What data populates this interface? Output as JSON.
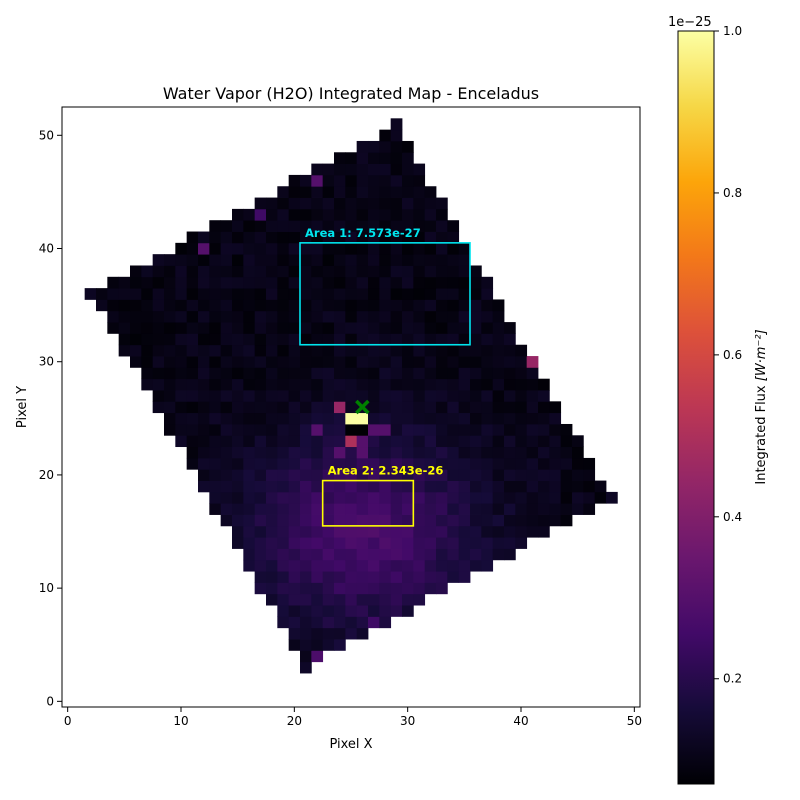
{
  "chart_data": {
    "type": "heatmap",
    "title": "Water Vapor (H2O) Integrated Map - Enceladus",
    "xlabel": "Pixel X",
    "ylabel": "Pixel Y",
    "xlim": [
      -0.5,
      50.5
    ],
    "ylim": [
      -0.5,
      52.5
    ],
    "xticks": [
      0,
      10,
      20,
      30,
      40,
      50
    ],
    "yticks": [
      0,
      10,
      20,
      30,
      40,
      50
    ],
    "grid": false,
    "colormap": "inferno",
    "colorbar": {
      "label": "Integrated Flux [W·m⁻²]",
      "label_main": "Integrated Flux ",
      "label_units": "[W·m⁻²]",
      "exponent_label": "1e−25",
      "range": [
        0.07,
        1.0
      ],
      "ticks": [
        0.2,
        0.4,
        0.6,
        0.8,
        1.0
      ],
      "tick_labels": [
        "0.2",
        "0.4",
        "0.6",
        "0.8",
        "1.0"
      ]
    },
    "field": {
      "shape": "rotated-rectangle",
      "corners": [
        [
          2,
          36
        ],
        [
          29,
          51
        ],
        [
          48,
          18
        ],
        [
          21,
          3
        ]
      ],
      "base_value": 0.1
    },
    "hotspots": [
      {
        "x": 25,
        "y": 25,
        "value": 1.0
      },
      {
        "x": 26,
        "y": 25,
        "value": 1.0
      },
      {
        "x": 25,
        "y": 23,
        "value": 0.5
      },
      {
        "x": 24,
        "y": 26,
        "value": 0.45
      },
      {
        "x": 41,
        "y": 30,
        "value": 0.45
      },
      {
        "x": 42,
        "y": 30,
        "value": 0.85
      },
      {
        "x": 20,
        "y": 4,
        "value": 0.45
      },
      {
        "x": 22,
        "y": 4,
        "value": 0.28
      },
      {
        "x": 23,
        "y": 4,
        "value": 0.08
      },
      {
        "x": 25,
        "y": 24,
        "value": 0.07
      },
      {
        "x": 26,
        "y": 24,
        "value": 0.07
      },
      {
        "x": 27,
        "y": 24,
        "value": 0.3
      },
      {
        "x": 28,
        "y": 24,
        "value": 0.3
      },
      {
        "x": 22,
        "y": 24,
        "value": 0.3
      },
      {
        "x": 24,
        "y": 22,
        "value": 0.3
      },
      {
        "x": 26,
        "y": 22,
        "value": 0.3
      },
      {
        "x": 26,
        "y": 23,
        "value": 0.3
      },
      {
        "x": 44,
        "y": 13,
        "value": 0.3
      },
      {
        "x": 37,
        "y": 11,
        "value": 0.3
      },
      {
        "x": 22,
        "y": 46,
        "value": 0.3
      },
      {
        "x": 12,
        "y": 40,
        "value": 0.3
      },
      {
        "x": 17,
        "y": 43,
        "value": 0.25
      },
      {
        "x": 27,
        "y": 7,
        "value": 0.25
      },
      {
        "x": 36,
        "y": 8,
        "value": 0.25
      },
      {
        "x": 14,
        "y": 11,
        "value": 0.27
      }
    ],
    "glow": {
      "x": 26,
      "y": 15,
      "sx": 7,
      "sy": 6,
      "amp": 0.17
    },
    "marker": {
      "x": 26,
      "y": 26,
      "symbol": "x",
      "color": "#008000"
    },
    "regions": [
      {
        "label": "Area 1: 7.573e-27",
        "x0": 20.5,
        "x1": 35.5,
        "y0": 31.5,
        "y1": 40.5,
        "color": "#00e5ee"
      },
      {
        "label": "Area 2: 2.343e-26",
        "x0": 22.5,
        "x1": 30.5,
        "y0": 15.5,
        "y1": 19.5,
        "color": "#ffff00"
      }
    ]
  }
}
